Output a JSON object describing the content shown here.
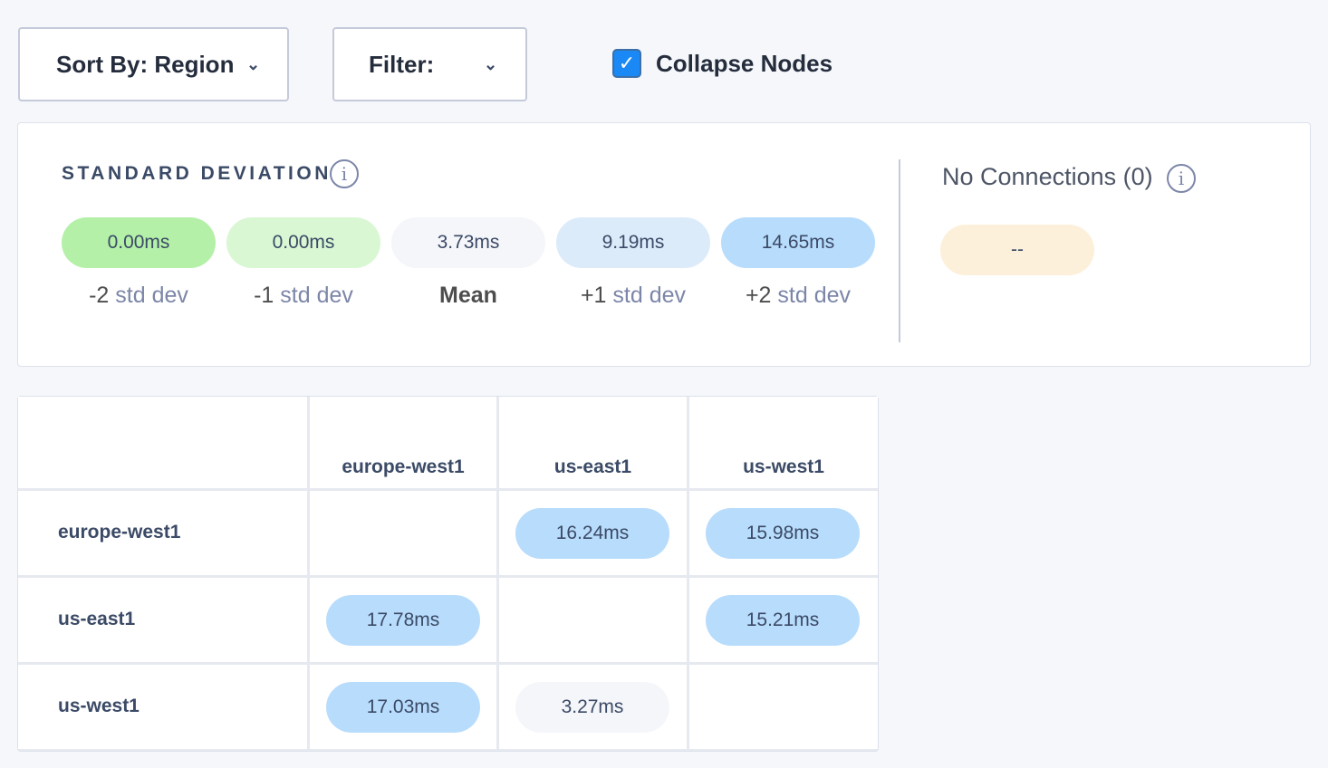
{
  "toolbar": {
    "sort_label": "Sort By: Region",
    "filter_label": "Filter:",
    "collapse_label": "Collapse Nodes",
    "collapse_checked": true
  },
  "legend": {
    "title": "STANDARD DEVIATION",
    "items": [
      {
        "value": "0.00ms",
        "prefix": "-2",
        "suffix": "std dev",
        "color": "#b4f0a8"
      },
      {
        "value": "0.00ms",
        "prefix": "-1",
        "suffix": "std dev",
        "color": "#d9f7d3"
      },
      {
        "value": "3.73ms",
        "prefix": "Mean",
        "suffix": "",
        "color": "#f5f6fa"
      },
      {
        "value": "9.19ms",
        "prefix": "+1",
        "suffix": "std dev",
        "color": "#dcebfa"
      },
      {
        "value": "14.65ms",
        "prefix": "+2",
        "suffix": "std dev",
        "color": "#b8dcfc"
      }
    ],
    "no_connections_label": "No Connections (0)",
    "no_connections_value": "--",
    "no_connections_color": "#fcf0da"
  },
  "matrix": {
    "columns": [
      "europe-west1",
      "us-east1",
      "us-west1"
    ],
    "rows": [
      {
        "label": "europe-west1",
        "cells": [
          null,
          "16.24ms",
          "15.98ms"
        ]
      },
      {
        "label": "us-east1",
        "cells": [
          "17.78ms",
          null,
          "15.21ms"
        ]
      },
      {
        "label": "us-west1",
        "cells": [
          "17.03ms",
          "3.27ms",
          null
        ]
      }
    ],
    "colors": [
      [
        null,
        "#b8dcfc",
        "#b8dcfc"
      ],
      [
        "#b8dcfc",
        null,
        "#b8dcfc"
      ],
      [
        "#b8dcfc",
        "#f5f6fa",
        null
      ]
    ]
  }
}
